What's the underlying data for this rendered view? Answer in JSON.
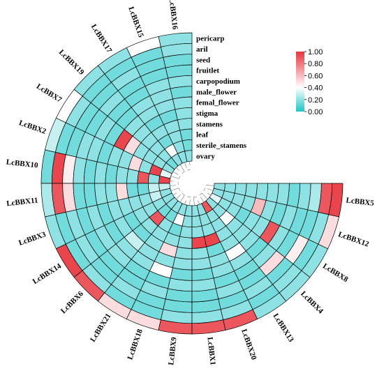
{
  "chart_data": {
    "type": "heatmap",
    "layout": "circular",
    "rows": [
      "pericarp",
      "aril",
      "seed",
      "fruitlet",
      "carpopodium",
      "male_flower",
      "femal_flower",
      "stigma",
      "stamens",
      "leaf",
      "sterile_stamens",
      "ovary"
    ],
    "genes": [
      "LcBBX16",
      "LcBBX15",
      "LcBBX17",
      "LcBBX19",
      "LcBBX7",
      "LcBBX2",
      "LcBBX10",
      "LcBBX11",
      "LcBBX3",
      "LcBBX14",
      "LcBBX6",
      "LcBBX21",
      "LcBBX18",
      "LcBBX9",
      "LcBBX1",
      "LcBBX20",
      "LcBBX13",
      "LcBBX4",
      "LcBBX8",
      "LcBBX12",
      "LcBBX5"
    ],
    "values": [
      [
        0.2,
        0.2,
        0.15,
        0.15,
        0.2,
        0.15,
        0.2,
        0.2,
        0.2,
        0.15,
        0.15,
        0.2
      ],
      [
        0.4,
        0.15,
        0.15,
        0.15,
        0.2,
        0.2,
        0.2,
        0.15,
        0.2,
        0.2,
        0.2,
        0.2
      ],
      [
        0.2,
        0.15,
        0.2,
        0.15,
        0.15,
        0.2,
        0.2,
        0.15,
        0.2,
        0.15,
        0.4,
        0.2
      ],
      [
        0.2,
        0.15,
        0.15,
        0.2,
        0.15,
        0.15,
        0.2,
        0.2,
        0.2,
        0.2,
        0.2,
        0.15
      ],
      [
        0.4,
        0.2,
        0.15,
        0.15,
        0.2,
        0.15,
        0.95,
        0.5,
        0.2,
        0.2,
        0.2,
        0.2
      ],
      [
        0.3,
        0.15,
        0.15,
        0.2,
        0.2,
        0.15,
        0.2,
        0.2,
        0.5,
        0.2,
        0.95,
        0.35
      ],
      [
        0.15,
        0.95,
        0.45,
        0.2,
        0.15,
        0.2,
        0.15,
        0.2,
        0.2,
        0.9,
        0.2,
        0.95
      ],
      [
        0.25,
        0.9,
        0.5,
        0.15,
        0.15,
        0.2,
        0.2,
        0.5,
        0.15,
        0.15,
        0.3,
        0.3
      ],
      [
        0.2,
        0.15,
        0.2,
        0.15,
        0.2,
        0.15,
        0.2,
        0.2,
        0.2,
        0.2,
        0.3,
        0.2
      ],
      [
        0.95,
        0.15,
        0.2,
        0.15,
        0.2,
        0.15,
        0.2,
        0.15,
        0.2,
        0.2,
        0.2,
        0.2
      ],
      [
        0.9,
        0.2,
        0.15,
        0.15,
        0.2,
        0.2,
        0.3,
        0.15,
        0.2,
        0.9,
        0.15,
        0.2
      ],
      [
        0.5,
        0.15,
        0.2,
        0.15,
        0.15,
        0.2,
        0.2,
        0.2,
        0.2,
        0.2,
        0.15,
        0.2
      ],
      [
        0.5,
        0.15,
        0.15,
        0.2,
        0.15,
        0.4,
        0.2,
        0.5,
        0.2,
        0.15,
        0.4,
        0.2
      ],
      [
        0.9,
        0.2,
        0.15,
        0.15,
        0.2,
        0.15,
        0.2,
        0.2,
        0.2,
        0.2,
        0.2,
        0.2
      ],
      [
        0.9,
        0.2,
        0.15,
        0.15,
        0.2,
        0.15,
        0.2,
        0.2,
        0.95,
        0.2,
        0.2,
        0.2
      ],
      [
        0.9,
        0.2,
        0.15,
        0.2,
        0.15,
        0.2,
        0.2,
        0.15,
        0.95,
        0.2,
        0.2,
        0.2
      ],
      [
        0.2,
        0.15,
        0.2,
        0.15,
        0.15,
        0.2,
        0.4,
        0.2,
        0.2,
        0.2,
        0.2,
        0.9
      ],
      [
        0.2,
        0.2,
        0.15,
        0.5,
        0.2,
        0.15,
        0.2,
        0.2,
        0.2,
        0.4,
        0.2,
        0.2
      ],
      [
        0.2,
        0.15,
        0.45,
        0.15,
        0.2,
        0.9,
        0.2,
        0.2,
        0.15,
        0.2,
        0.2,
        0.35
      ],
      [
        0.5,
        0.2,
        0.15,
        0.15,
        0.2,
        0.15,
        0.2,
        0.6,
        0.2,
        0.2,
        0.2,
        0.2
      ],
      [
        0.95,
        0.9,
        0.25,
        0.2,
        0.15,
        0.2,
        0.2,
        0.2,
        0.2,
        0.2,
        0.2,
        0.2
      ]
    ],
    "colorbar": {
      "min": 0,
      "max": 1,
      "ticks": [
        "0.00",
        "0.20",
        "0.40",
        "0.60",
        "0.80",
        "1.00"
      ],
      "colors": [
        "#1ec5c6",
        "#ffffff",
        "#e8343c"
      ]
    },
    "title": "",
    "xlabel": "",
    "ylabel": ""
  }
}
